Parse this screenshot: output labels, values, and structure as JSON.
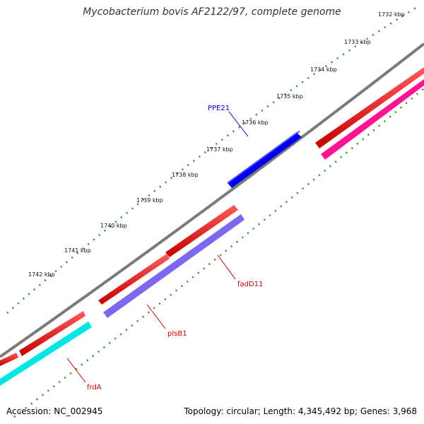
{
  "title": "Mycobacterium bovis AF2122/97, complete genome",
  "footer": {
    "accession": "Accession: NC_002945",
    "summary": "Topology: circular; Length: 4,345,492 bp; Genes: 3,968"
  },
  "colors": {
    "backbone": "#808080",
    "tick": "#2e8b2e",
    "gene_label_plus": "#0000cc",
    "gene_label_minus": "#cc0000"
  },
  "scale": {
    "labels": [
      "1732 kbp",
      "1733 kbp",
      "1734 kbp",
      "1735 kbp",
      "1736 kbp",
      "1737 kbp",
      "1738 kbp",
      "1739 kbp",
      "1740 kbp",
      "1741 kbp",
      "1742 kbp"
    ]
  },
  "genes": [
    {
      "name": "PPE21",
      "strand": "forward",
      "track": 2,
      "color": "#0000ee"
    },
    {
      "name": "fadD11",
      "strand": "reverse",
      "track": 1,
      "color": "#ee0000"
    },
    {
      "name": "plsB1",
      "strand": "reverse",
      "track": 1,
      "color": "#ee0000"
    },
    {
      "name": "frdA",
      "strand": "reverse",
      "track": 1,
      "color": "#ee0000"
    }
  ],
  "feature_colors": {
    "cds_reverse": "#ee0000",
    "cds_forward_other": "#ee0000",
    "cog_magenta": "#ff1493",
    "cog_purple": "#7b68ee",
    "cog_cyan": "#00e5e5"
  }
}
